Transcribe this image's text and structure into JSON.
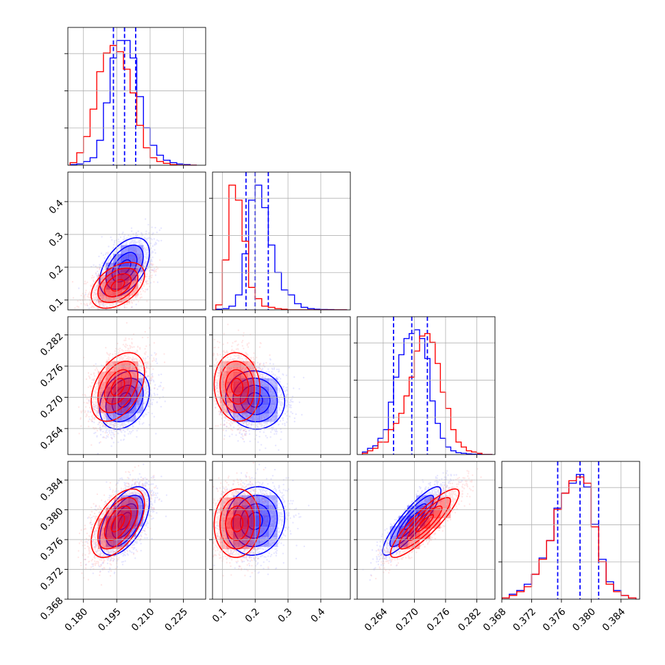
{
  "colors": {
    "series_a": "#0000ff",
    "series_b": "#ff0000",
    "grid": "#b0b0b0"
  },
  "chart_data": {
    "type": "corner",
    "grid": true,
    "params": [
      {
        "range": [
          0.173,
          0.235
        ],
        "ticks": [
          0.18,
          0.195,
          0.21,
          0.225
        ],
        "tick_labels": [
          "0.180",
          "0.195",
          "0.210",
          "0.225"
        ]
      },
      {
        "range": [
          0.07,
          0.49
        ],
        "ticks": [
          0.1,
          0.2,
          0.3,
          0.4
        ],
        "tick_labels": [
          "0.1",
          "0.2",
          "0.3",
          "0.4"
        ]
      },
      {
        "range": [
          0.259,
          0.2855
        ],
        "ticks": [
          0.264,
          0.27,
          0.276,
          0.282
        ],
        "tick_labels": [
          "0.264",
          "0.270",
          "0.276",
          "0.282"
        ]
      },
      {
        "range": [
          0.368,
          0.3865
        ],
        "ticks": [
          0.368,
          0.372,
          0.376,
          0.38,
          0.384
        ],
        "tick_labels": [
          "0.368",
          "0.372",
          "0.376",
          "0.380",
          "0.384"
        ]
      }
    ],
    "series": [
      {
        "color": "#0000ff",
        "mean": [
          0.1985,
          0.2,
          0.2695,
          0.3785
        ],
        "std": [
          0.0056,
          0.045,
          0.0028,
          0.0023
        ],
        "corr": [
          [
            1,
            0.48,
            0.3,
            0.55
          ],
          [
            0.48,
            1,
            -0.05,
            0.1
          ],
          [
            0.3,
            -0.05,
            1,
            0.88
          ],
          [
            0.55,
            0.1,
            0.88,
            1
          ]
        ],
        "quantiles": [
          [
            0.1935,
            0.1985,
            0.2035
          ],
          [
            0.172,
            0.2,
            0.24
          ],
          [
            0.266,
            0.2695,
            0.2725
          ],
          [
            0.3755,
            0.3785,
            0.381
          ]
        ],
        "histograms": [
          {
            "edges": [
              0.174,
              0.177,
              0.18,
              0.183,
              0.186,
              0.189,
              0.192,
              0.195,
              0.198,
              0.201,
              0.204,
              0.207,
              0.21,
              0.213,
              0.216,
              0.219,
              0.222,
              0.225,
              0.228,
              0.231
            ],
            "counts": [
              0.005,
              0.01,
              0.03,
              0.06,
              0.2,
              0.5,
              0.86,
              1.0,
              1.0,
              0.86,
              0.55,
              0.3,
              0.16,
              0.08,
              0.04,
              0.02,
              0.01,
              0.005,
              0.0
            ]
          },
          {
            "edges": [
              0.08,
              0.1,
              0.12,
              0.14,
              0.16,
              0.18,
              0.2,
              0.22,
              0.24,
              0.26,
              0.28,
              0.3,
              0.32,
              0.34,
              0.36,
              0.38,
              0.4,
              0.42,
              0.44,
              0.46,
              0.48
            ],
            "counts": [
              0.005,
              0.01,
              0.03,
              0.12,
              0.45,
              0.88,
              1.0,
              0.82,
              0.52,
              0.3,
              0.16,
              0.12,
              0.05,
              0.02,
              0.01,
              0.005,
              0.003,
              0.002,
              0.0,
              0.0
            ]
          },
          {
            "edges": [
              0.26,
              0.261,
              0.262,
              0.263,
              0.264,
              0.265,
              0.266,
              0.267,
              0.268,
              0.269,
              0.27,
              0.271,
              0.272,
              0.273,
              0.274,
              0.275,
              0.276,
              0.277,
              0.278,
              0.279,
              0.28,
              0.281,
              0.282,
              0.283,
              0.284,
              0.285
            ],
            "counts": [
              0.02,
              0.05,
              0.07,
              0.13,
              0.2,
              0.42,
              0.62,
              0.8,
              0.93,
              0.97,
              1.0,
              0.93,
              0.77,
              0.43,
              0.25,
              0.13,
              0.06,
              0.03,
              0.015,
              0.01,
              0.005,
              0.003,
              0.002,
              0.0,
              0.0
            ]
          },
          {
            "edges": [
              0.368,
              0.369,
              0.37,
              0.371,
              0.372,
              0.373,
              0.374,
              0.375,
              0.376,
              0.377,
              0.378,
              0.379,
              0.38,
              0.381,
              0.382,
              0.383,
              0.384,
              0.385,
              0.386
            ],
            "counts": [
              0.01,
              0.04,
              0.07,
              0.12,
              0.2,
              0.33,
              0.47,
              0.73,
              0.85,
              0.93,
              1.0,
              0.9,
              0.6,
              0.32,
              0.14,
              0.07,
              0.03,
              0.01
            ]
          }
        ]
      },
      {
        "color": "#ff0000",
        "mean": [
          0.1955,
          0.145,
          0.272,
          0.3782
        ],
        "std": [
          0.006,
          0.035,
          0.0033,
          0.0023
        ],
        "corr": [
          [
            1,
            0.45,
            0.42,
            0.55
          ],
          [
            0.45,
            1,
            -0.08,
            0.05
          ],
          [
            0.42,
            -0.08,
            1,
            0.88
          ],
          [
            0.55,
            0.05,
            0.88,
            1
          ]
        ],
        "quantiles": [],
        "histograms": [
          {
            "edges": [
              0.174,
              0.177,
              0.18,
              0.183,
              0.186,
              0.189,
              0.192,
              0.195,
              0.198,
              0.201,
              0.204,
              0.207,
              0.21,
              0.213,
              0.216,
              0.219,
              0.222,
              0.225,
              0.228,
              0.231
            ],
            "counts": [
              0.02,
              0.1,
              0.23,
              0.45,
              0.75,
              0.9,
              0.96,
              0.91,
              0.77,
              0.58,
              0.32,
              0.14,
              0.06,
              0.03,
              0.015,
              0.005,
              0.0,
              0.0,
              0.0
            ]
          },
          {
            "edges": [
              0.08,
              0.1,
              0.12,
              0.14,
              0.16,
              0.18,
              0.2,
              0.22,
              0.24,
              0.26,
              0.28,
              0.3,
              0.32,
              0.34,
              0.36,
              0.38,
              0.4,
              0.42,
              0.44,
              0.46,
              0.48
            ],
            "counts": [
              0.04,
              0.4,
              1.0,
              0.88,
              0.55,
              0.18,
              0.09,
              0.03,
              0.02,
              0.01,
              0.005,
              0.0,
              0.0,
              0.0,
              0.0,
              0.0,
              0.0,
              0.0,
              0.0,
              0.0
            ]
          },
          {
            "edges": [
              0.26,
              0.261,
              0.262,
              0.263,
              0.264,
              0.265,
              0.266,
              0.267,
              0.268,
              0.269,
              0.27,
              0.271,
              0.272,
              0.273,
              0.274,
              0.275,
              0.276,
              0.277,
              0.278,
              0.279,
              0.28,
              0.281,
              0.282,
              0.283,
              0.284,
              0.285
            ],
            "counts": [
              0.01,
              0.03,
              0.05,
              0.1,
              0.1,
              0.2,
              0.25,
              0.33,
              0.47,
              0.62,
              0.83,
              0.95,
              0.97,
              0.9,
              0.73,
              0.5,
              0.37,
              0.2,
              0.1,
              0.06,
              0.03,
              0.02,
              0.01,
              0.0,
              0.0
            ]
          },
          {
            "edges": [
              0.368,
              0.369,
              0.37,
              0.371,
              0.372,
              0.373,
              0.374,
              0.375,
              0.376,
              0.377,
              0.378,
              0.379,
              0.38,
              0.381,
              0.382,
              0.383,
              0.384,
              0.385,
              0.386
            ],
            "counts": [
              0.01,
              0.03,
              0.06,
              0.1,
              0.2,
              0.32,
              0.47,
              0.72,
              0.85,
              0.95,
              0.98,
              0.93,
              0.58,
              0.3,
              0.12,
              0.06,
              0.03,
              0.01
            ]
          }
        ]
      }
    ]
  }
}
